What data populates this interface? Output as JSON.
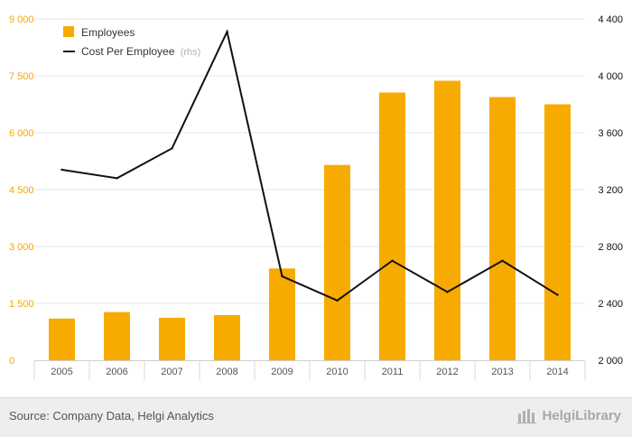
{
  "chart_data": {
    "type": "bar+line",
    "categories": [
      "2005",
      "2006",
      "2007",
      "2008",
      "2009",
      "2010",
      "2011",
      "2012",
      "2013",
      "2014"
    ],
    "series": [
      {
        "name": "Employees",
        "type": "bar",
        "axis": "left",
        "color": "#f7ab00",
        "values": [
          1100,
          1270,
          1120,
          1190,
          2420,
          5150,
          7060,
          7370,
          6940,
          6750
        ]
      },
      {
        "name": "Cost Per Employee",
        "suffix": "(rhs)",
        "type": "line",
        "axis": "right",
        "color": "#111111",
        "values": [
          3340,
          3280,
          3490,
          4310,
          2590,
          2420,
          2700,
          2480,
          2700,
          2460
        ]
      }
    ],
    "y_left": {
      "min": 0,
      "max": 9000,
      "ticks": [
        "0",
        "1 500",
        "3 000",
        "4 500",
        "6 000",
        "7 500",
        "9 000"
      ]
    },
    "y_right": {
      "min": 2000,
      "max": 4400,
      "ticks": [
        "2 000",
        "2 400",
        "2 800",
        "3 200",
        "3 600",
        "4 000",
        "4 400"
      ]
    },
    "grid": true,
    "legend_position": "top-left"
  },
  "footer": {
    "source": "Source: Company Data, Helgi Analytics",
    "brand": "HelgiLibrary"
  }
}
